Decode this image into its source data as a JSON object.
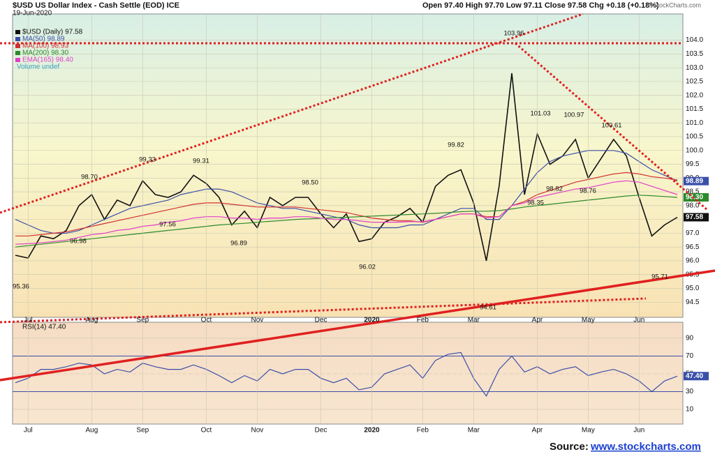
{
  "chart_data": [
    {
      "type": "line",
      "title": "$USD US Dollar Index - Cash Settle (EOD) ICE",
      "subtitle": "19-Jun-2020",
      "ohlc": "Open 97.40  High 97.70  Low 97.11  Close 97.58  Chg +0.18 (+0.18%)",
      "credit": "© StockCharts.com",
      "categories": [
        null,
        "Jul",
        null,
        null,
        null,
        null,
        "Aug",
        null,
        null,
        null,
        "Sep",
        null,
        null,
        null,
        null,
        "Oct",
        null,
        null,
        null,
        "Nov",
        null,
        null,
        null,
        null,
        "Dec",
        null,
        null,
        null,
        "2020",
        null,
        null,
        null,
        "Feb",
        null,
        null,
        null,
        "Mar",
        null,
        null,
        null,
        null,
        "Apr",
        null,
        null,
        null,
        "May",
        null,
        null,
        null,
        "Jun",
        null,
        null,
        null
      ],
      "ylim": [
        93.95,
        104.95
      ],
      "yticks": [
        94.5,
        {
          "value": 95,
          "label": "95.0"
        },
        95.5,
        {
          "value": 96,
          "label": "96.0"
        },
        96.5,
        {
          "value": 97,
          "label": "97.0"
        },
        97.5,
        {
          "value": 98,
          "label": "98.0"
        },
        98.5,
        {
          "value": 99,
          "label": "99.0"
        },
        99.5,
        {
          "value": 100,
          "label": "100.0"
        },
        100.5,
        {
          "value": 101,
          "label": "101.0"
        },
        101.5,
        {
          "value": 102,
          "label": "102.0"
        },
        102.5,
        {
          "value": 103,
          "label": "103.0"
        },
        103.5,
        {
          "value": 104,
          "label": "104.0"
        }
      ],
      "grid": true,
      "series": [
        {
          "name": "$USD (Daily) 97.58",
          "color": "#111111",
          "width": 1.6,
          "last_label": "97.58",
          "values": [
            96.2,
            96.1,
            96.9,
            96.8,
            97.1,
            98.0,
            98.4,
            97.5,
            98.2,
            98.0,
            98.9,
            98.4,
            98.3,
            98.5,
            99.1,
            98.8,
            98.3,
            97.3,
            97.8,
            97.2,
            98.3,
            98.0,
            98.3,
            98.3,
            97.7,
            97.2,
            97.7,
            96.7,
            96.8,
            97.4,
            97.6,
            97.9,
            97.4,
            98.7,
            99.1,
            99.3,
            98.1,
            96.0,
            98.7,
            102.8,
            98.4,
            100.6,
            99.5,
            99.8,
            100.4,
            99.0,
            99.7,
            100.4,
            99.8,
            98.3,
            96.9,
            97.3,
            97.58
          ]
        },
        {
          "name": "MA(50) 98.89",
          "color": "#3a4fa8",
          "width": 1.2,
          "last_label": "98.89",
          "values": [
            97.5,
            97.3,
            97.1,
            97.0,
            97.0,
            97.1,
            97.3,
            97.5,
            97.7,
            97.9,
            98.0,
            98.1,
            98.2,
            98.4,
            98.5,
            98.6,
            98.6,
            98.5,
            98.3,
            98.1,
            98.0,
            97.9,
            97.9,
            97.8,
            97.7,
            97.6,
            97.5,
            97.3,
            97.2,
            97.2,
            97.2,
            97.3,
            97.3,
            97.5,
            97.7,
            97.9,
            97.9,
            97.5,
            97.5,
            98.0,
            98.6,
            99.2,
            99.6,
            99.8,
            99.9,
            100.0,
            100.0,
            100.0,
            99.9,
            99.6,
            99.3,
            99.1,
            98.89
          ]
        },
        {
          "name": "MA(100) 98.93",
          "color": "#d03030",
          "width": 1.2,
          "values": [
            96.9,
            96.9,
            96.95,
            97.0,
            97.05,
            97.15,
            97.25,
            97.35,
            97.45,
            97.55,
            97.65,
            97.75,
            97.85,
            97.95,
            98.05,
            98.1,
            98.1,
            98.05,
            98.0,
            97.95,
            97.95,
            97.95,
            97.95,
            97.9,
            97.85,
            97.8,
            97.75,
            97.65,
            97.55,
            97.5,
            97.45,
            97.45,
            97.4,
            97.5,
            97.6,
            97.7,
            97.7,
            97.6,
            97.6,
            98.0,
            98.15,
            98.4,
            98.55,
            98.7,
            98.85,
            98.95,
            99.05,
            99.15,
            99.2,
            99.15,
            99.05,
            99.0,
            98.93
          ]
        },
        {
          "name": "MA(200) 98.30",
          "color": "#2c8a2c",
          "width": 1.2,
          "last_label": "98.30",
          "values": [
            96.5,
            96.55,
            96.6,
            96.65,
            96.7,
            96.75,
            96.8,
            96.85,
            96.9,
            96.95,
            97.0,
            97.05,
            97.1,
            97.15,
            97.2,
            97.25,
            97.3,
            97.33,
            97.36,
            97.4,
            97.43,
            97.46,
            97.5,
            97.52,
            97.54,
            97.56,
            97.58,
            97.6,
            97.62,
            97.64,
            97.66,
            97.68,
            97.7,
            97.72,
            97.75,
            97.78,
            97.8,
            97.8,
            97.82,
            97.88,
            97.95,
            98.0,
            98.05,
            98.1,
            98.15,
            98.2,
            98.25,
            98.3,
            98.35,
            98.38,
            98.36,
            98.33,
            98.3
          ]
        },
        {
          "name": "EMA(165) 98.40",
          "color": "#e040c8",
          "width": 1.2,
          "values": [
            96.6,
            96.62,
            96.65,
            96.7,
            96.75,
            96.85,
            96.95,
            97.0,
            97.1,
            97.15,
            97.25,
            97.3,
            97.4,
            97.45,
            97.55,
            97.6,
            97.6,
            97.55,
            97.55,
            97.5,
            97.55,
            97.55,
            97.6,
            97.6,
            97.55,
            97.5,
            97.5,
            97.45,
            97.4,
            97.4,
            97.4,
            97.42,
            97.42,
            97.5,
            97.6,
            97.7,
            97.7,
            97.55,
            97.6,
            98.0,
            98.1,
            98.3,
            98.4,
            98.5,
            98.6,
            98.65,
            98.75,
            98.85,
            98.9,
            98.85,
            98.7,
            98.55,
            98.4
          ]
        }
      ],
      "legend_extra": "Volume undef",
      "annotations": [
        "95.36",
        "96.98",
        "98.70",
        "97.56",
        "99.33",
        "99.31",
        "96.89",
        "98.50",
        "96.02",
        "99.82",
        "94.61",
        "103.96",
        "98.35",
        "101.03",
        "98.82",
        "100.97",
        "98.76",
        "100.61",
        "95.71"
      ]
    },
    {
      "type": "line",
      "title": "RSI(14) 47.40",
      "ylim": [
        -6.5,
        108
      ],
      "yticks": [
        10,
        30,
        50,
        70,
        90
      ],
      "series": [
        {
          "name": "RSI(14)",
          "color": "#3a4fa8",
          "width": 1.2,
          "last_label": "47.40",
          "values": [
            40,
            45,
            55,
            55,
            58,
            62,
            60,
            50,
            55,
            52,
            62,
            58,
            55,
            55,
            60,
            55,
            48,
            40,
            48,
            42,
            55,
            50,
            55,
            55,
            45,
            40,
            45,
            32,
            35,
            50,
            55,
            60,
            45,
            65,
            72,
            74,
            45,
            25,
            55,
            70,
            52,
            58,
            50,
            55,
            58,
            48,
            52,
            55,
            50,
            42,
            30,
            42,
            47.4
          ]
        }
      ]
    }
  ],
  "source": {
    "label": "Source:",
    "link": "www.stockcharts.com"
  }
}
